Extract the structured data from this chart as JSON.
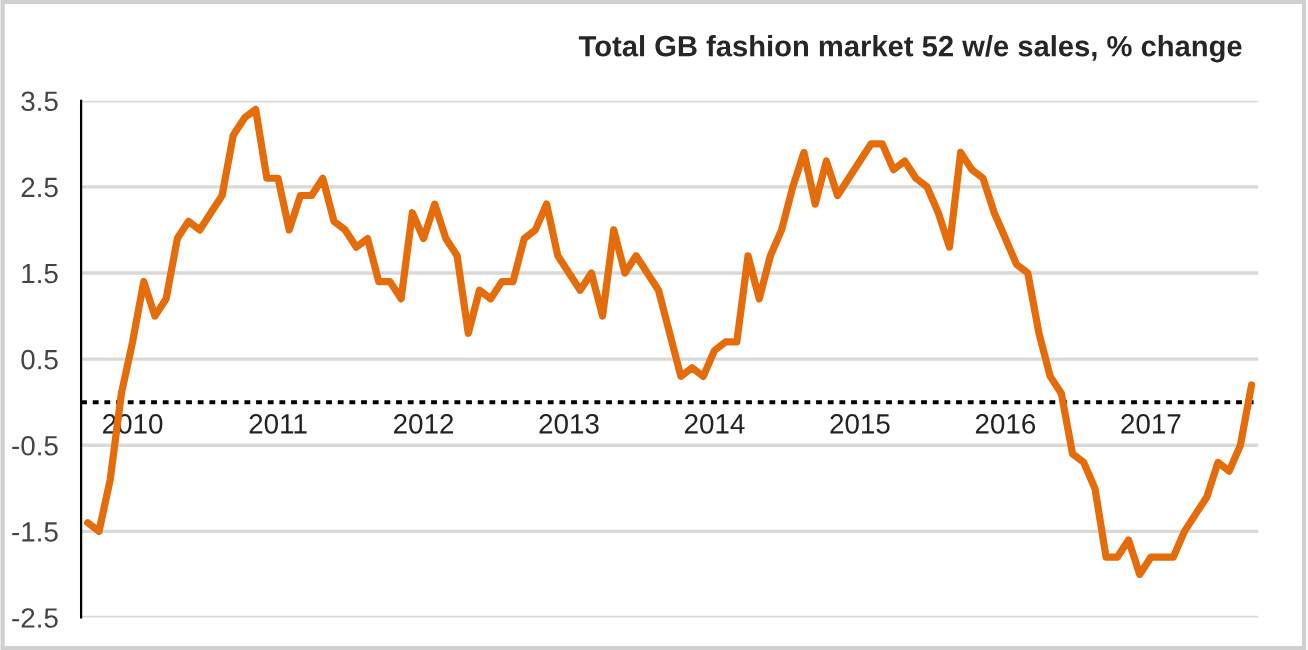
{
  "chart_data": {
    "type": "line",
    "title": "Total GB fashion market 52 w/e sales, % change",
    "categories": [
      null,
      null,
      null,
      null,
      "2010",
      null,
      null,
      null,
      null,
      null,
      null,
      null,
      null,
      null,
      null,
      null,
      null,
      "2011",
      null,
      null,
      null,
      null,
      null,
      null,
      null,
      null,
      null,
      null,
      null,
      null,
      "2012",
      null,
      null,
      null,
      null,
      null,
      null,
      null,
      null,
      null,
      null,
      null,
      null,
      "2013",
      null,
      null,
      null,
      null,
      null,
      null,
      null,
      null,
      null,
      null,
      null,
      null,
      "2014",
      null,
      null,
      null,
      null,
      null,
      null,
      null,
      null,
      null,
      null,
      null,
      null,
      "2015",
      null,
      null,
      null,
      null,
      null,
      null,
      null,
      null,
      null,
      null,
      null,
      null,
      "2016",
      null,
      null,
      null,
      null,
      null,
      null,
      null,
      null,
      null,
      null,
      null,
      null,
      "2017",
      null,
      null,
      null,
      null,
      null,
      null,
      null,
      null,
      null
    ],
    "series": [
      {
        "color": "#e46c0a",
        "values": [
          -1.4,
          -1.5,
          -0.9,
          0.1,
          0.7,
          1.4,
          1.0,
          1.2,
          1.9,
          2.1,
          2.0,
          2.2,
          2.4,
          3.1,
          3.3,
          3.4,
          2.6,
          2.6,
          2.0,
          2.4,
          2.4,
          2.6,
          2.1,
          2.0,
          1.8,
          1.9,
          1.4,
          1.4,
          1.2,
          2.2,
          1.9,
          2.3,
          1.9,
          1.7,
          0.8,
          1.3,
          1.2,
          1.4,
          1.4,
          1.9,
          2.0,
          2.3,
          1.7,
          1.5,
          1.3,
          1.5,
          1.0,
          2.0,
          1.5,
          1.7,
          1.5,
          1.3,
          0.8,
          0.3,
          0.4,
          0.3,
          0.6,
          0.7,
          0.7,
          1.7,
          1.2,
          1.7,
          2.0,
          2.5,
          2.9,
          2.3,
          2.8,
          2.4,
          2.6,
          2.8,
          3.0,
          3.0,
          2.7,
          2.8,
          2.6,
          2.5,
          2.2,
          1.8,
          2.9,
          2.7,
          2.6,
          2.2,
          1.9,
          1.6,
          1.5,
          0.8,
          0.3,
          0.1,
          -0.6,
          -0.7,
          -1.0,
          -1.8,
          -1.8,
          -1.6,
          -2.0,
          -1.8,
          -1.8,
          -1.8,
          -1.5,
          -1.3,
          -1.1,
          -0.7,
          -0.8,
          -0.5,
          0.2
        ]
      }
    ],
    "ylim": [
      -2.5,
      3.5
    ],
    "yticks": [
      -2.5,
      -1.5,
      -0.5,
      0.5,
      1.5,
      2.5,
      3.5
    ],
    "grid": "y",
    "legend": false,
    "ref_lines": [
      {
        "axis": "y",
        "value": 0,
        "color": "#000000",
        "line_style": "dotted"
      }
    ]
  }
}
